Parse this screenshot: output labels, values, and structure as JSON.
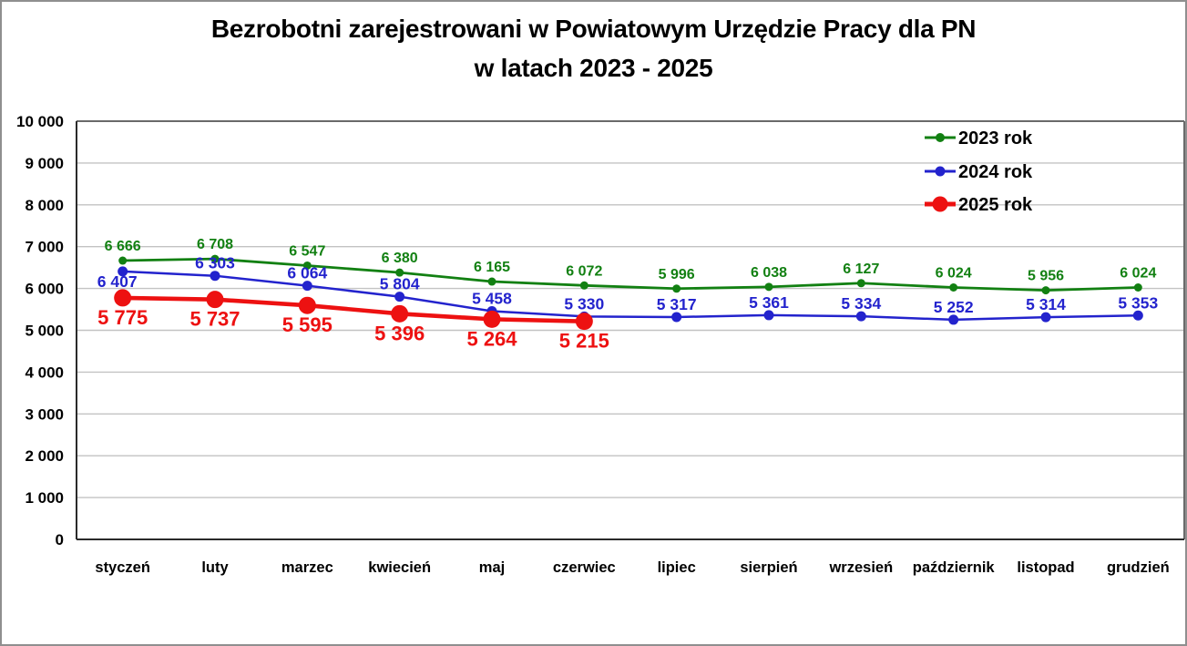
{
  "window": {
    "background": "#ffffff",
    "border_color": "#8f8f8f"
  },
  "title": {
    "line1": "Bezrobotni zarejestrowani w Powiatowym Urzędzie Pracy dla PN",
    "line2": "w latach 2023 - 2025"
  },
  "chart_data": {
    "type": "line",
    "title": "Bezrobotni zarejestrowani w Powiatowym Urzędzie Pracy dla PN w latach 2023 - 2025",
    "categories": [
      "styczeń",
      "luty",
      "marzec",
      "kwiecień",
      "maj",
      "czerwiec",
      "lipiec",
      "sierpień",
      "wrzesień",
      "październik",
      "listopad",
      "grudzień"
    ],
    "series": [
      {
        "name": "2023 rok",
        "color": "#128012",
        "values": [
          6666,
          6708,
          6547,
          6380,
          6165,
          6072,
          5996,
          6038,
          6127,
          6024,
          5956,
          6024
        ]
      },
      {
        "name": "2024 rok",
        "color": "#2323cd",
        "values": [
          6407,
          6303,
          6064,
          5804,
          5458,
          5330,
          5317,
          5361,
          5334,
          5252,
          5314,
          5353
        ]
      },
      {
        "name": "2025 rok",
        "color": "#ed1111",
        "values": [
          5775,
          5737,
          5595,
          5396,
          5264,
          5215
        ]
      }
    ],
    "xlabel": "",
    "ylabel": "",
    "ylim": [
      0,
      10000
    ],
    "ytick_step": 1000,
    "ytick_labels": [
      "0",
      "1 000",
      "2 000",
      "3 000",
      "4 000",
      "5 000",
      "6 000",
      "7 000",
      "8 000",
      "9 000",
      "10 000"
    ],
    "grid": true,
    "grid_color": "#c3c3c3",
    "frame_color": "#6a6a6a",
    "axis_color": "#2a2a2a",
    "legend_position": "inside-top-right",
    "data_labels": true,
    "text_color": "#000000"
  }
}
